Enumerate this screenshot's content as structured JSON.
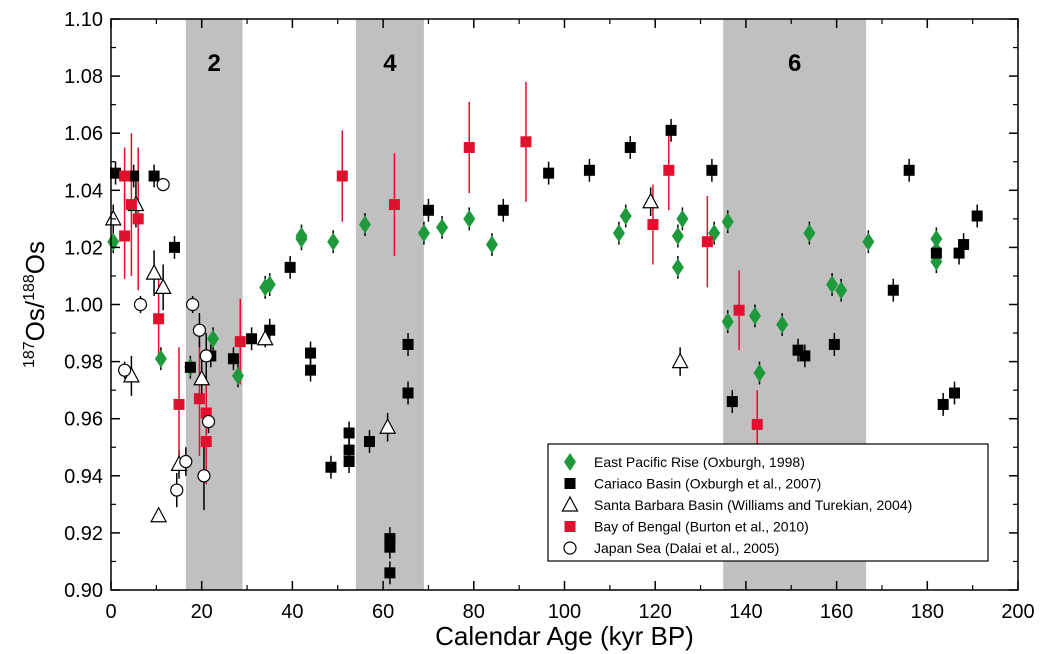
{
  "chart_data": {
    "type": "scatter",
    "xlabel": "Calendar Age (kyr BP)",
    "ylabel": "187Os/188Os",
    "ylabel_parts": {
      "sup1": "187",
      "main1": "Os/",
      "sup2": "188",
      "main2": "Os"
    },
    "xlim": [
      0,
      200
    ],
    "ylim": [
      0.9,
      1.1
    ],
    "x_ticks": [
      "0",
      "20",
      "40",
      "60",
      "80",
      "100",
      "120",
      "140",
      "160",
      "180",
      "200"
    ],
    "y_ticks": [
      "0.90",
      "0.92",
      "0.94",
      "0.96",
      "0.98",
      "1.00",
      "1.02",
      "1.04",
      "1.06",
      "1.08",
      "1.10"
    ],
    "grid": false,
    "legend_position": "bottom-right",
    "shaded_bands": [
      {
        "label": "2",
        "x_start": 16.5,
        "x_end": 29
      },
      {
        "label": "4",
        "x_start": 54,
        "x_end": 69
      },
      {
        "label": "6",
        "x_start": 135,
        "x_end": 166.5
      }
    ],
    "colors": {
      "east_pacific_rise": "#1e9a3c",
      "cariaco": "#000000",
      "bay_of_bengal": "#e0102e",
      "band": "#c0c0c0"
    },
    "series": [
      {
        "name": "East Pacific Rise (Oxburgh, 1998)",
        "marker": "diamond",
        "points": [
          {
            "x": 0.5,
            "y": 1.022,
            "e": 0.004
          },
          {
            "x": 11,
            "y": 0.981,
            "e": 0.004
          },
          {
            "x": 17.5,
            "y": 0.978,
            "e": 0.003
          },
          {
            "x": 22.5,
            "y": 0.988,
            "e": 0.004
          },
          {
            "x": 28,
            "y": 0.975,
            "e": 0.004
          },
          {
            "x": 34,
            "y": 1.006,
            "e": 0.004
          },
          {
            "x": 35,
            "y": 1.007,
            "e": 0.004
          },
          {
            "x": 42,
            "y": 1.024,
            "e": 0.004
          },
          {
            "x": 42,
            "y": 1.023,
            "e": 0.004
          },
          {
            "x": 49,
            "y": 1.022,
            "e": 0.004
          },
          {
            "x": 56,
            "y": 1.028,
            "e": 0.004
          },
          {
            "x": 69,
            "y": 1.025,
            "e": 0.004
          },
          {
            "x": 73,
            "y": 1.027,
            "e": 0.004
          },
          {
            "x": 79,
            "y": 1.03,
            "e": 0.004
          },
          {
            "x": 84,
            "y": 1.021,
            "e": 0.004
          },
          {
            "x": 112,
            "y": 1.025,
            "e": 0.004
          },
          {
            "x": 113.5,
            "y": 1.031,
            "e": 0.004
          },
          {
            "x": 125,
            "y": 1.024,
            "e": 0.004
          },
          {
            "x": 125,
            "y": 1.013,
            "e": 0.004
          },
          {
            "x": 126,
            "y": 1.03,
            "e": 0.004
          },
          {
            "x": 133,
            "y": 1.025,
            "e": 0.004
          },
          {
            "x": 136,
            "y": 1.029,
            "e": 0.004
          },
          {
            "x": 136,
            "y": 0.994,
            "e": 0.004
          },
          {
            "x": 142,
            "y": 0.996,
            "e": 0.004
          },
          {
            "x": 143,
            "y": 0.976,
            "e": 0.004
          },
          {
            "x": 148,
            "y": 0.993,
            "e": 0.004
          },
          {
            "x": 154,
            "y": 1.025,
            "e": 0.004
          },
          {
            "x": 159,
            "y": 1.007,
            "e": 0.004
          },
          {
            "x": 161,
            "y": 1.005,
            "e": 0.004
          },
          {
            "x": 167,
            "y": 1.022,
            "e": 0.004
          },
          {
            "x": 182,
            "y": 1.023,
            "e": 0.004
          },
          {
            "x": 182,
            "y": 1.019,
            "e": 0.004
          },
          {
            "x": 182,
            "y": 1.015,
            "e": 0.004
          }
        ]
      },
      {
        "name": "Cariaco Basin (Oxburgh et al., 2007)",
        "marker": "square",
        "points": [
          {
            "x": 1,
            "y": 1.046,
            "e": 0.004
          },
          {
            "x": 5,
            "y": 1.045,
            "e": 0.004
          },
          {
            "x": 9.5,
            "y": 1.045,
            "e": 0.004
          },
          {
            "x": 14,
            "y": 1.02,
            "e": 0.004
          },
          {
            "x": 17.5,
            "y": 0.978,
            "e": 0.004
          },
          {
            "x": 22,
            "y": 0.982,
            "e": 0.004
          },
          {
            "x": 27,
            "y": 0.981,
            "e": 0.004
          },
          {
            "x": 31,
            "y": 0.988,
            "e": 0.004
          },
          {
            "x": 35,
            "y": 0.991,
            "e": 0.004
          },
          {
            "x": 39.5,
            "y": 1.013,
            "e": 0.004
          },
          {
            "x": 44,
            "y": 0.983,
            "e": 0.004
          },
          {
            "x": 44,
            "y": 0.977,
            "e": 0.004
          },
          {
            "x": 48.5,
            "y": 0.943,
            "e": 0.004
          },
          {
            "x": 52.5,
            "y": 0.955,
            "e": 0.004
          },
          {
            "x": 52.5,
            "y": 0.949,
            "e": 0.004
          },
          {
            "x": 52.5,
            "y": 0.945,
            "e": 0.004
          },
          {
            "x": 57,
            "y": 0.952,
            "e": 0.004
          },
          {
            "x": 61.5,
            "y": 0.918,
            "e": 0.004
          },
          {
            "x": 61.5,
            "y": 0.915,
            "e": 0.004
          },
          {
            "x": 61.5,
            "y": 0.906,
            "e": 0.004
          },
          {
            "x": 65.5,
            "y": 0.986,
            "e": 0.004
          },
          {
            "x": 65.5,
            "y": 0.969,
            "e": 0.004
          },
          {
            "x": 70,
            "y": 1.033,
            "e": 0.004
          },
          {
            "x": 86.5,
            "y": 1.033,
            "e": 0.004
          },
          {
            "x": 96.5,
            "y": 1.046,
            "e": 0.004
          },
          {
            "x": 105.5,
            "y": 1.047,
            "e": 0.004
          },
          {
            "x": 114.5,
            "y": 1.055,
            "e": 0.004
          },
          {
            "x": 123.5,
            "y": 1.061,
            "e": 0.004
          },
          {
            "x": 132.5,
            "y": 1.047,
            "e": 0.004
          },
          {
            "x": 137,
            "y": 0.966,
            "e": 0.004
          },
          {
            "x": 151.5,
            "y": 0.984,
            "e": 0.004
          },
          {
            "x": 153,
            "y": 0.982,
            "e": 0.004
          },
          {
            "x": 159.5,
            "y": 0.986,
            "e": 0.004
          },
          {
            "x": 172.5,
            "y": 1.005,
            "e": 0.004
          },
          {
            "x": 176,
            "y": 1.047,
            "e": 0.004
          },
          {
            "x": 182,
            "y": 1.018,
            "e": 0.004
          },
          {
            "x": 183.5,
            "y": 0.965,
            "e": 0.004
          },
          {
            "x": 186,
            "y": 0.969,
            "e": 0.004
          },
          {
            "x": 187,
            "y": 1.018,
            "e": 0.004
          },
          {
            "x": 188,
            "y": 1.021,
            "e": 0.004
          },
          {
            "x": 191,
            "y": 1.031,
            "e": 0.004
          }
        ]
      },
      {
        "name": "Santa Barbara Basin (Williams and Turekian, 2004)",
        "marker": "triangle",
        "points": [
          {
            "x": 0.5,
            "y": 1.03,
            "e": 0.005
          },
          {
            "x": 4.5,
            "y": 0.975,
            "e": 0.007
          },
          {
            "x": 5.5,
            "y": 1.035,
            "e": 0.008
          },
          {
            "x": 9.5,
            "y": 1.011,
            "e": 0.008
          },
          {
            "x": 10.5,
            "y": 0.926,
            "e": 0.002
          },
          {
            "x": 11.5,
            "y": 1.006,
            "e": 0.008
          },
          {
            "x": 15,
            "y": 0.944,
            "e": 0.005
          },
          {
            "x": 20,
            "y": 0.974,
            "e": 0.008
          },
          {
            "x": 34,
            "y": 0.988,
            "e": 0.003
          },
          {
            "x": 61,
            "y": 0.957,
            "e": 0.005
          },
          {
            "x": 119,
            "y": 1.036,
            "e": 0.005
          },
          {
            "x": 125.5,
            "y": 0.98,
            "e": 0.005
          }
        ]
      },
      {
        "name": "Bay of Bengal (Burton et al., 2010)",
        "marker": "square-red",
        "points": [
          {
            "x": 3,
            "y": 1.045,
            "e": 0.01
          },
          {
            "x": 3,
            "y": 1.024,
            "e": 0.015
          },
          {
            "x": 4.5,
            "y": 1.035,
            "e": 0.025
          },
          {
            "x": 6,
            "y": 1.03,
            "e": 0.025
          },
          {
            "x": 10.5,
            "y": 0.995,
            "e": 0.015
          },
          {
            "x": 15,
            "y": 0.965,
            "e": 0.02
          },
          {
            "x": 19.5,
            "y": 0.967,
            "e": 0.02
          },
          {
            "x": 21,
            "y": 0.962,
            "e": 0.015
          },
          {
            "x": 21,
            "y": 0.952,
            "e": 0.015
          },
          {
            "x": 28.5,
            "y": 0.987,
            "e": 0.015
          },
          {
            "x": 51,
            "y": 1.045,
            "e": 0.016
          },
          {
            "x": 62.5,
            "y": 1.035,
            "e": 0.018
          },
          {
            "x": 79,
            "y": 1.055,
            "e": 0.016
          },
          {
            "x": 91.5,
            "y": 1.057,
            "e": 0.021
          },
          {
            "x": 123,
            "y": 1.047,
            "e": 0.014
          },
          {
            "x": 119.5,
            "y": 1.028,
            "e": 0.014
          },
          {
            "x": 131.5,
            "y": 1.022,
            "e": 0.016
          },
          {
            "x": 138.5,
            "y": 0.998,
            "e": 0.014
          },
          {
            "x": 142.5,
            "y": 0.958,
            "e": 0.012
          }
        ]
      },
      {
        "name": "Japan Sea (Dalai et al., 2005)",
        "marker": "circle",
        "points": [
          {
            "x": 3,
            "y": 0.977,
            "e": 0.003
          },
          {
            "x": 6.5,
            "y": 1.0,
            "e": 0.003
          },
          {
            "x": 11.5,
            "y": 1.042,
            "e": 0.002
          },
          {
            "x": 14.5,
            "y": 0.935,
            "e": 0.006
          },
          {
            "x": 16.5,
            "y": 0.945,
            "e": 0.005
          },
          {
            "x": 18,
            "y": 1.0,
            "e": 0.003
          },
          {
            "x": 19.5,
            "y": 0.991,
            "e": 0.006
          },
          {
            "x": 20.5,
            "y": 0.94,
            "e": 0.012
          },
          {
            "x": 21,
            "y": 0.982,
            "e": 0.008
          },
          {
            "x": 21.5,
            "y": 0.959,
            "e": 0.004
          }
        ]
      }
    ]
  }
}
